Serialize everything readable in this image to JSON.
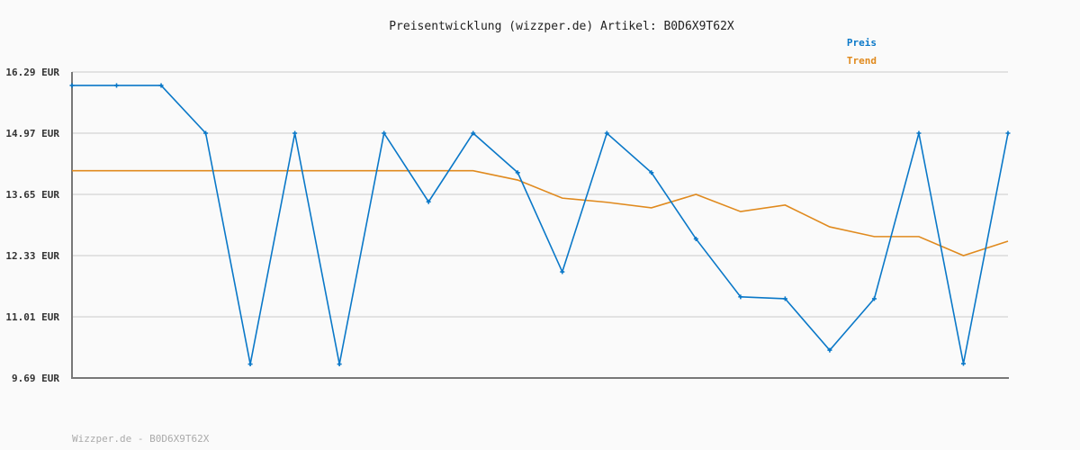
{
  "chart_data": {
    "type": "line",
    "title": "Preisentwicklung (wizzper.de) Artikel: B0D6X9T62X",
    "footer": "Wizzper.de - B0D6X9T62X",
    "ylim": [
      9.69,
      16.29
    ],
    "yticks": [
      "9.69 EUR",
      "11.01 EUR",
      "12.33 EUR",
      "13.65 EUR",
      "14.97 EUR",
      "16.29 EUR"
    ],
    "ytick_values": [
      9.69,
      11.01,
      12.33,
      13.65,
      14.97,
      16.29
    ],
    "grid": true,
    "legend_placement": "top-right",
    "series": [
      {
        "name": "Preis",
        "color": "#0a78c8",
        "markers": true,
        "values": [
          16.0,
          16.0,
          16.0,
          14.97,
          9.99,
          14.97,
          9.99,
          14.97,
          13.49,
          14.97,
          14.12,
          11.98,
          14.97,
          14.12,
          12.69,
          11.44,
          11.4,
          10.29,
          11.4,
          14.97,
          10.0,
          14.97
        ]
      },
      {
        "name": "Trend",
        "color": "#e08a1e",
        "markers": false,
        "values": [
          14.16,
          14.16,
          14.16,
          14.16,
          14.16,
          14.16,
          14.16,
          14.16,
          14.16,
          14.16,
          13.96,
          13.57,
          13.48,
          13.36,
          13.65,
          13.28,
          13.42,
          12.95,
          12.74,
          12.74,
          12.33,
          12.64
        ]
      }
    ]
  }
}
